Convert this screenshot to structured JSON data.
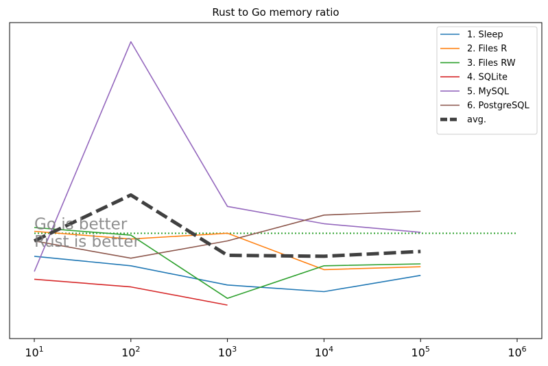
{
  "chart_data": {
    "type": "line",
    "title": "Rust to Go memory ratio",
    "xlabel": "",
    "ylabel": "",
    "x_scale": "log",
    "xlim": [
      10,
      1000000
    ],
    "ylim": [
      0.45,
      2.1
    ],
    "x_ticks": [
      {
        "value": 10,
        "base": "10",
        "exp": "1"
      },
      {
        "value": 100,
        "base": "10",
        "exp": "2"
      },
      {
        "value": 1000,
        "base": "10",
        "exp": "3"
      },
      {
        "value": 10000,
        "base": "10",
        "exp": "4"
      },
      {
        "value": 100000,
        "base": "10",
        "exp": "5"
      },
      {
        "value": 1000000,
        "base": "10",
        "exp": "6"
      }
    ],
    "grid": false,
    "legend_position": "top-right",
    "reference_line": {
      "y": 1.0,
      "color": "#2ca02c",
      "style": "dotted"
    },
    "annotations": [
      {
        "text": "Go is better",
        "x": 10,
        "y": 1.02
      },
      {
        "text": "Rust is better",
        "x": 10,
        "y": 0.93
      }
    ],
    "series": [
      {
        "name": "1. Sleep",
        "color": "#1f77b4",
        "style": "solid",
        "x": [
          10,
          100,
          1000,
          10000,
          100000
        ],
        "y": [
          0.88,
          0.83,
          0.73,
          0.695,
          0.78
        ]
      },
      {
        "name": "2. Files R",
        "color": "#ff7f0e",
        "style": "solid",
        "x": [
          10,
          100,
          1000,
          10000,
          100000
        ],
        "y": [
          1.01,
          0.97,
          1.0,
          0.81,
          0.825
        ]
      },
      {
        "name": "3. Files RW",
        "color": "#2ca02c",
        "style": "solid",
        "x": [
          10,
          100,
          1000,
          10000,
          100000
        ],
        "y": [
          1.03,
          0.99,
          0.66,
          0.83,
          0.84
        ]
      },
      {
        "name": "4. SQLite",
        "color": "#d62728",
        "style": "solid",
        "x": [
          10,
          100,
          1000
        ],
        "y": [
          0.76,
          0.72,
          0.625
        ]
      },
      {
        "name": "5. MySQL",
        "color": "#9467bd",
        "style": "solid",
        "x": [
          10,
          100,
          1000,
          10000,
          100000
        ],
        "y": [
          0.8,
          2.0,
          1.14,
          1.05,
          1.005
        ]
      },
      {
        "name": "6. PostgreSQL",
        "color": "#8c564b",
        "style": "solid",
        "x": [
          10,
          100,
          1000,
          10000,
          100000
        ],
        "y": [
          0.96,
          0.87,
          0.96,
          1.095,
          1.115
        ]
      },
      {
        "name": "avg.",
        "color": "#404040",
        "style": "dashed",
        "x": [
          10,
          100,
          1000,
          10000,
          100000
        ],
        "y": [
          0.96,
          1.2,
          0.885,
          0.88,
          0.905
        ]
      }
    ]
  }
}
